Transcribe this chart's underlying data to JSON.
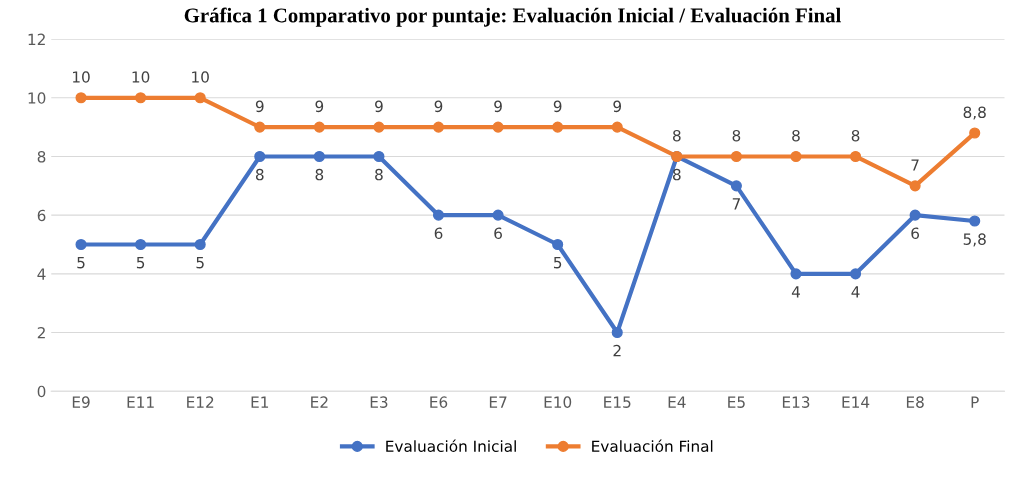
{
  "chart_data": {
    "type": "line",
    "title": "Gráfica 1 Comparativo por puntaje: Evaluación Inicial / Evaluación Final",
    "categories": [
      "E9",
      "E11",
      "E12",
      "E1",
      "E2",
      "E3",
      "E6",
      "E7",
      "E10",
      "E15",
      "E4",
      "E5",
      "E13",
      "E14",
      "E8",
      "P"
    ],
    "series": [
      {
        "name": "Evaluación Inicial",
        "color": "#4472c4",
        "values": [
          5,
          5,
          5,
          8,
          8,
          8,
          6,
          6,
          5,
          2,
          8,
          7,
          4,
          4,
          6,
          5.8
        ],
        "value_labels": [
          "5",
          "5",
          "5",
          "8",
          "8",
          "8",
          "6",
          "6",
          "5",
          "2",
          "8",
          "7",
          "4",
          "4",
          "6",
          "5,8"
        ]
      },
      {
        "name": "Evaluación Final",
        "color": "#ed7d31",
        "values": [
          10,
          10,
          10,
          9,
          9,
          9,
          9,
          9,
          9,
          9,
          8,
          8,
          8,
          8,
          7,
          8.8
        ],
        "value_labels": [
          "10",
          "10",
          "10",
          "9",
          "9",
          "9",
          "9",
          "9",
          "9",
          "9",
          "8",
          "8",
          "8",
          "8",
          "7",
          "8,8"
        ]
      }
    ],
    "ylim": [
      0,
      12
    ],
    "yticks": [
      0,
      2,
      4,
      6,
      8,
      10,
      12
    ],
    "grid": "y",
    "legend": "bottom",
    "marker": "circle",
    "line_style": "solid"
  }
}
